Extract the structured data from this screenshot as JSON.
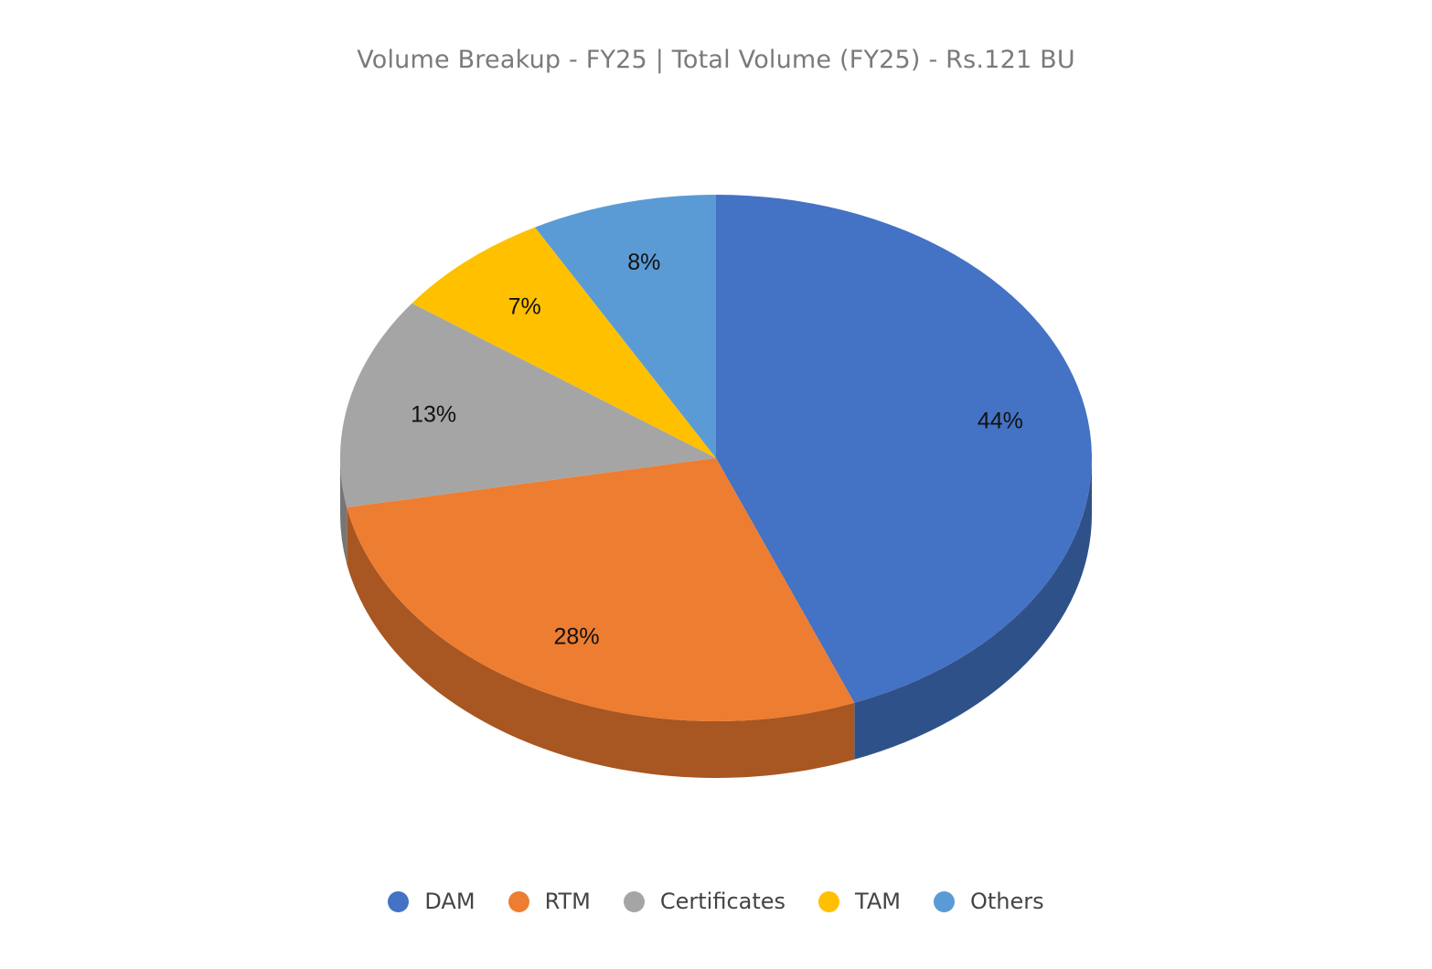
{
  "chart_data": {
    "type": "pie",
    "title": "Volume Breakup - FY25 | Total Volume (FY25) - Rs.121 BU",
    "labels": [
      "DAM",
      "RTM",
      "Certificates",
      "TAM",
      "Others"
    ],
    "values": [
      44,
      28,
      13,
      7,
      8
    ],
    "value_labels": [
      "44%",
      "28%",
      "13%",
      "7%",
      "8%"
    ],
    "colors": [
      "#4472C4",
      "#ED7D31",
      "#A5A5A5",
      "#FFC000",
      "#5B9BD5"
    ],
    "side_colors": [
      "#2F5189",
      "#A85622",
      "#767676",
      "#B38700",
      "#3F6F98"
    ],
    "style": "3d-tilted",
    "start": "12 o'clock, clockwise",
    "legend_position": "bottom"
  }
}
